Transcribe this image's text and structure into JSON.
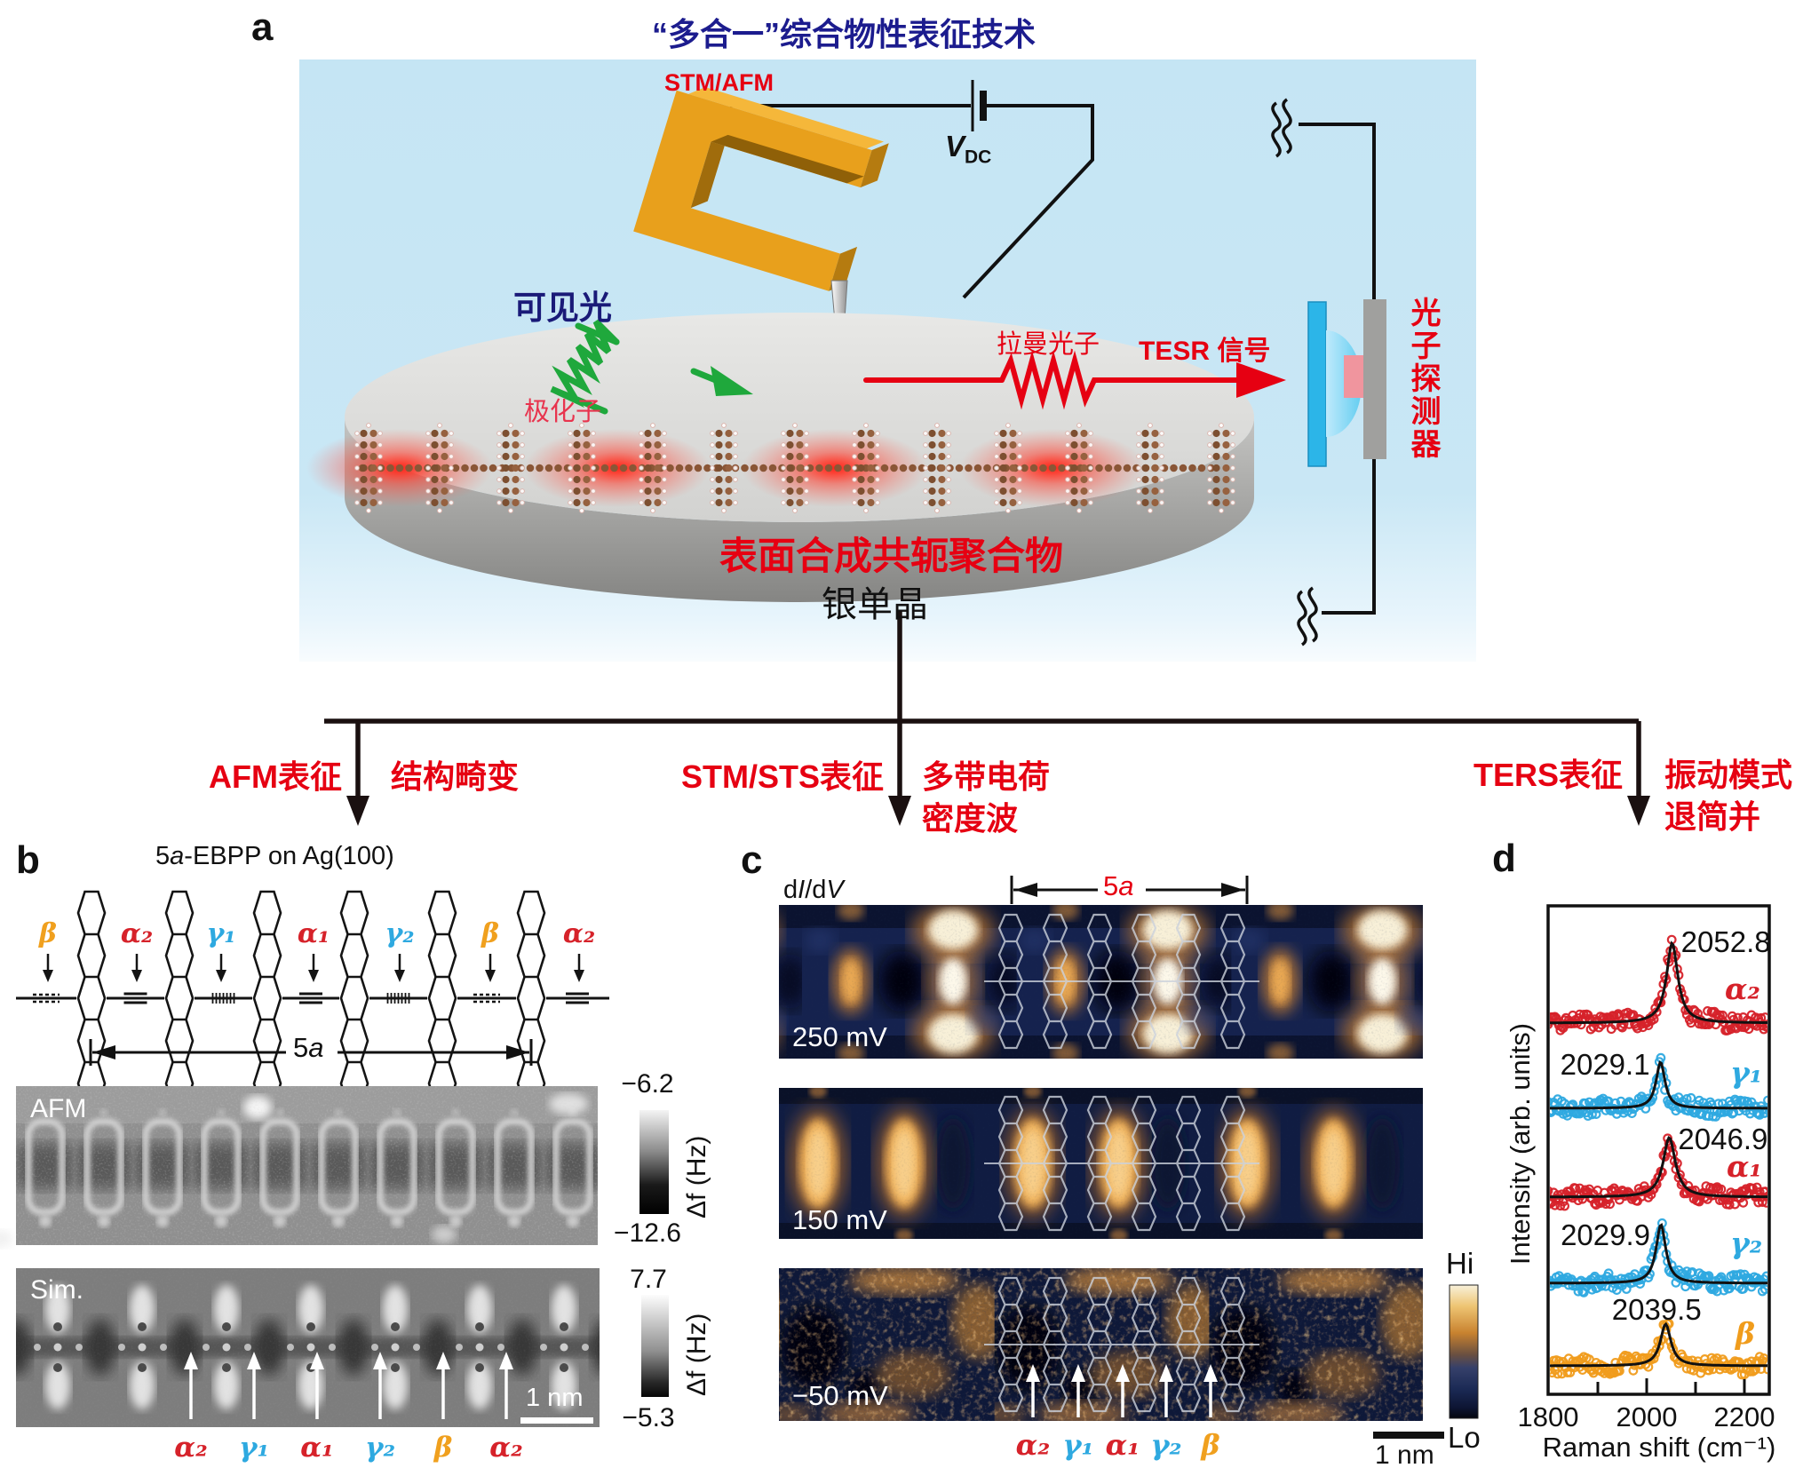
{
  "figure": {
    "labels": {
      "a": "a",
      "b": "b",
      "c": "c",
      "d": "d"
    }
  },
  "panel_a": {
    "title": "“多合一”综合物性表征技术",
    "stm_afm": "STM/AFM",
    "vdc_v": "V",
    "vdc_sub": "DC",
    "visible_light": "可见光",
    "polaron": "极化子",
    "raman_photon": "拉曼光子",
    "tesr_signal": "TESR 信号",
    "polymer": "表面合成共轭聚合物",
    "crystal": "银单晶",
    "detector": "光子探测器"
  },
  "branches": {
    "afm_method": "AFM表征",
    "afm_result": "结构畸变",
    "stm_method": "STM/STS表征",
    "stm_result_line1": "多带电荷",
    "stm_result_line2": "密度波",
    "ters_method": "TERS表征",
    "ters_result_line1": "振动模式",
    "ters_result_line2": "退简并"
  },
  "panel_b": {
    "title_num": "5",
    "title_italic": "a",
    "title_rest": "-EBPP on Ag(100)",
    "bond_labels": [
      "β",
      "α₂",
      "γ₁",
      "α₁",
      "γ₂",
      "β",
      "α₂"
    ],
    "dim_num": "5",
    "dim_letter": "a",
    "afm_label": "AFM",
    "sim_label": "Sim.",
    "scale_bar": "1 nm",
    "cbar1_top": "−6.2",
    "cbar1_bottom": "−12.6",
    "cbar1_unit": "Δf (Hz)",
    "cbar2_top": "7.7",
    "cbar2_bottom": "−5.3",
    "cbar2_unit": "Δf (Hz)",
    "sim_labels": [
      "α₂",
      "γ₁",
      "α₁",
      "γ₂",
      "β",
      "α₂"
    ]
  },
  "panel_c": {
    "didv_d1": "d",
    "didv_i": "I",
    "didv_d2": "/d",
    "didv_v": "V",
    "dim_num": "5",
    "dim_letter": "a",
    "bias_labels": [
      "250 mV",
      "150 mV",
      "−50 mV"
    ],
    "arrow_labels": [
      "α₂",
      "γ₁",
      "α₁",
      "γ₂",
      "β"
    ],
    "cbar_hi": "Hi",
    "cbar_lo": "Lo",
    "scale_bar": "1 nm"
  },
  "chart_data": {
    "type": "line",
    "title": "",
    "xlabel": "Raman shift (cm⁻¹)",
    "ylabel": "Intensity (arb. units)",
    "xlim": [
      1800,
      2250
    ],
    "xticks": [
      1800,
      2000,
      2200
    ],
    "minor_ticks": [
      1900,
      2100
    ],
    "grid": false,
    "legend_position": "right of each peak",
    "series": [
      {
        "name": "α₂",
        "peak_cm1": 2052.8,
        "annotation": "2052.8",
        "color": "#d6222a",
        "annotation_side": "right"
      },
      {
        "name": "γ₁",
        "peak_cm1": 2029.1,
        "annotation": "2029.1",
        "color": "#2ea9e0",
        "annotation_side": "left"
      },
      {
        "name": "α₁",
        "peak_cm1": 2046.9,
        "annotation": "2046.9",
        "color": "#d6222a",
        "annotation_side": "right"
      },
      {
        "name": "γ₂",
        "peak_cm1": 2029.9,
        "annotation": "2029.9",
        "color": "#2ea9e0",
        "annotation_side": "left"
      },
      {
        "name": "β",
        "peak_cm1": 2039.5,
        "annotation": "2039.5",
        "color": "#f09c1c",
        "annotation_side": "center"
      }
    ]
  },
  "colors": {
    "accent_red": "#e60012",
    "label_red": "#d6222a",
    "label_cyan": "#2ea9e0",
    "label_orange": "#f0a01e",
    "title_blue": "#1c1c8e",
    "light_blue_bg": "#c5e5f4"
  }
}
